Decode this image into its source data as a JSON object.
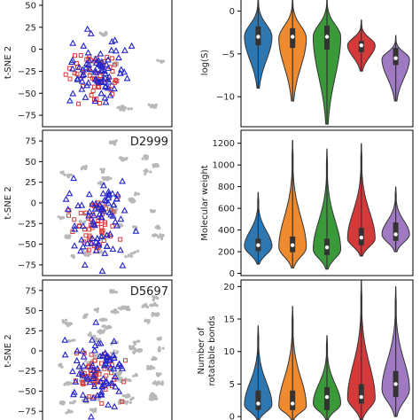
{
  "colors": {
    "violins": [
      "#2f77b1",
      "#ef8a2e",
      "#3a9a3a",
      "#d43a3a",
      "#9f7ac2"
    ],
    "background_points": "#b8b8b8",
    "triangle_markers": "#2525c8",
    "square_markers": "#d43a3a",
    "frame": "#000000"
  },
  "chart_data": [
    {
      "type": "scatter",
      "panel": "tsne-1",
      "ylabel": "t-SNE 2",
      "yticks": [
        "50",
        "25",
        "0",
        "−25",
        "−50",
        "−75"
      ],
      "ytick_values": [
        50,
        25,
        0,
        -25,
        -50,
        -75
      ],
      "ylim": [
        -88,
        58
      ],
      "background_density": 0.12,
      "tag": ""
    },
    {
      "type": "scatter",
      "panel": "tsne-2",
      "ylabel": "t-SNE 2",
      "yticks": [
        "75",
        "50",
        "25",
        "0",
        "−25",
        "−50",
        "−75"
      ],
      "ytick_values": [
        75,
        50,
        25,
        0,
        -25,
        -50,
        -75
      ],
      "ylim": [
        -88,
        88
      ],
      "background_density": 0.55,
      "tag": "D2999"
    },
    {
      "type": "scatter",
      "panel": "tsne-3",
      "ylabel": "t-SNE 2",
      "yticks": [
        "75",
        "50",
        "25",
        "0",
        "−25",
        "−50",
        "−75"
      ],
      "ytick_values": [
        75,
        50,
        25,
        0,
        -25,
        -50,
        -75
      ],
      "ylim": [
        -88,
        88
      ],
      "background_density": 1.0,
      "tag": "D5697"
    },
    {
      "type": "violin",
      "panel": "violin-logS",
      "ylabel": "log(S)",
      "yticks": [
        "0",
        "−5",
        "−10"
      ],
      "ytick_values": [
        0,
        -5,
        -10
      ],
      "ylim": [
        -13.5,
        1.5
      ],
      "series": [
        {
          "median": -3.0,
          "q1": -4.0,
          "q3": -1.8,
          "min": -9.0,
          "max": 2.0,
          "mode": -3.0
        },
        {
          "median": -3.0,
          "q1": -4.3,
          "q3": -2.0,
          "min": -10.5,
          "max": 2.0,
          "mode": -3.2
        },
        {
          "median": -3.0,
          "q1": -4.5,
          "q3": -1.7,
          "min": -13.2,
          "max": 2.0,
          "mode": -3.0
        },
        {
          "median": -4.0,
          "q1": -4.8,
          "q3": -3.5,
          "min": -7.0,
          "max": -1.0,
          "mode": -4.0
        },
        {
          "median": -5.5,
          "q1": -6.3,
          "q3": -4.3,
          "min": -10.5,
          "max": -2.8,
          "mode": -5.6
        }
      ]
    },
    {
      "type": "violin",
      "panel": "violin-mw",
      "ylabel": "Molecular weight",
      "yticks": [
        "0",
        "200",
        "400",
        "600",
        "800",
        "1000",
        "1200"
      ],
      "ytick_values": [
        0,
        200,
        400,
        600,
        800,
        1000,
        1200
      ],
      "ylim": [
        -20,
        1320
      ],
      "series": [
        {
          "median": 260,
          "q1": 205,
          "q3": 320,
          "min": 85,
          "max": 750,
          "mode": 250
        },
        {
          "median": 260,
          "q1": 195,
          "q3": 340,
          "min": 50,
          "max": 1230,
          "mode": 240
        },
        {
          "median": 240,
          "q1": 170,
          "q3": 320,
          "min": 40,
          "max": 1150,
          "mode": 220
        },
        {
          "median": 330,
          "q1": 260,
          "q3": 420,
          "min": 160,
          "max": 1200,
          "mode": 320
        },
        {
          "median": 360,
          "q1": 300,
          "q3": 470,
          "min": 200,
          "max": 800,
          "mode": 360
        }
      ]
    },
    {
      "type": "violin",
      "panel": "violin-rot",
      "ylabel": "Number of rotatable bonds",
      "ylabel_lines": [
        "Number of",
        "rotatable bonds"
      ],
      "yticks": [
        "0",
        "5",
        "10",
        "15",
        "20"
      ],
      "ytick_values": [
        0,
        5,
        10,
        15,
        20
      ],
      "ylim": [
        -0.8,
        21
      ],
      "series": [
        {
          "median": 2,
          "q1": 1,
          "q3": 4,
          "min": -0.5,
          "max": 14,
          "mode": 1.8
        },
        {
          "median": 2,
          "q1": 1,
          "q3": 4,
          "min": -0.5,
          "max": 17,
          "mode": 1.6
        },
        {
          "median": 3,
          "q1": 1,
          "q3": 4.5,
          "min": -0.5,
          "max": 12.5,
          "mode": 2.0
        },
        {
          "median": 3,
          "q1": 2,
          "q3": 5,
          "min": -0.5,
          "max": 21,
          "mode": 2.8
        },
        {
          "median": 5,
          "q1": 3,
          "q3": 7,
          "min": 0,
          "max": 20,
          "mode": 4.2
        }
      ]
    }
  ]
}
